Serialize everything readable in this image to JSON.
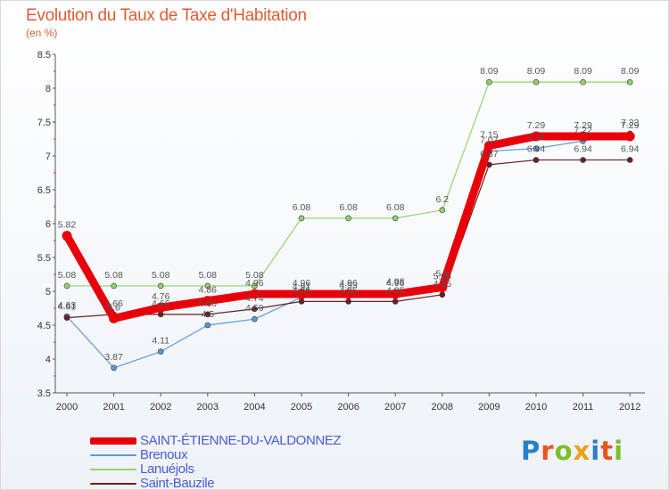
{
  "title": "Evolution du Taux de Taxe d'Habitation",
  "unit": "(en %)",
  "brand": {
    "text": "Proxiti",
    "colors": [
      "#2a7fc9",
      "#e8541f",
      "#7bbf2a",
      "#e8a317",
      "#2a7fc9",
      "#e8541f",
      "#7bbf2a"
    ]
  },
  "chart_data": {
    "type": "line",
    "title": "Evolution du Taux de Taxe d'Habitation",
    "ylabel": "(en %)",
    "xlabel": "",
    "categories": [
      "2000",
      "2001",
      "2002",
      "2003",
      "2004",
      "2005",
      "2006",
      "2007",
      "2008",
      "2009",
      "2010",
      "2011",
      "2012"
    ],
    "ylim": [
      3.5,
      8.5
    ],
    "yticks": [
      "3.5",
      "4",
      "4.5",
      "5",
      "5.5",
      "6",
      "6.5",
      "7",
      "7.5",
      "8",
      "8.5"
    ],
    "grid": false,
    "legend": "bottom-left",
    "series": [
      {
        "name": "SAINT-ÉTIENNE-DU-VALDONNEZ",
        "color": "#e8000b",
        "values": [
          5.82,
          4.6,
          4.76,
          4.86,
          4.96,
          4.96,
          4.96,
          4.96,
          5.06,
          7.15,
          7.29,
          7.29,
          7.29
        ],
        "labels": [
          "5.82",
          "4.6",
          "4.76",
          "4.86",
          "4.96",
          "4.96",
          "4.96",
          "4.96",
          "5.06",
          "7.15",
          "7.29",
          "7.29",
          "7.29"
        ]
      },
      {
        "name": "Brenoux",
        "color": "#5b9bd5",
        "values": [
          4.63,
          3.87,
          4.11,
          4.5,
          4.59,
          4.91,
          4.93,
          4.98,
          5.1,
          7.07,
          7.11,
          7.22,
          7.33
        ],
        "labels": [
          "4.63",
          "3.87",
          "4.11",
          "4.5",
          "4.59",
          "4.91",
          "4.93",
          "4.98",
          "5.1",
          "7.07",
          "7.11",
          "7.22",
          "7.33"
        ]
      },
      {
        "name": "Lanuéjols",
        "color": "#8fd46a",
        "values": [
          5.08,
          5.08,
          5.08,
          5.08,
          5.08,
          6.08,
          6.08,
          6.08,
          6.2,
          8.09,
          8.09,
          8.09,
          8.09
        ],
        "labels": [
          "5.08",
          "5.08",
          "5.08",
          "5.08",
          "5.08",
          "6.08",
          "6.08",
          "6.08",
          "6.2",
          "8.09",
          "8.09",
          "8.09",
          "8.09"
        ]
      },
      {
        "name": "Saint-Bauzile",
        "color": "#6b1f24",
        "values": [
          4.61,
          4.66,
          4.66,
          4.66,
          4.74,
          4.85,
          4.85,
          4.85,
          4.95,
          6.87,
          6.94,
          6.94,
          6.94
        ],
        "labels": [
          "4.61",
          "4.66",
          "4.66",
          "4.66",
          "4.74",
          "4.85",
          "4.85",
          "4.85",
          "4.95",
          "6.87",
          "6.94",
          "6.94",
          "6.94"
        ]
      }
    ]
  }
}
